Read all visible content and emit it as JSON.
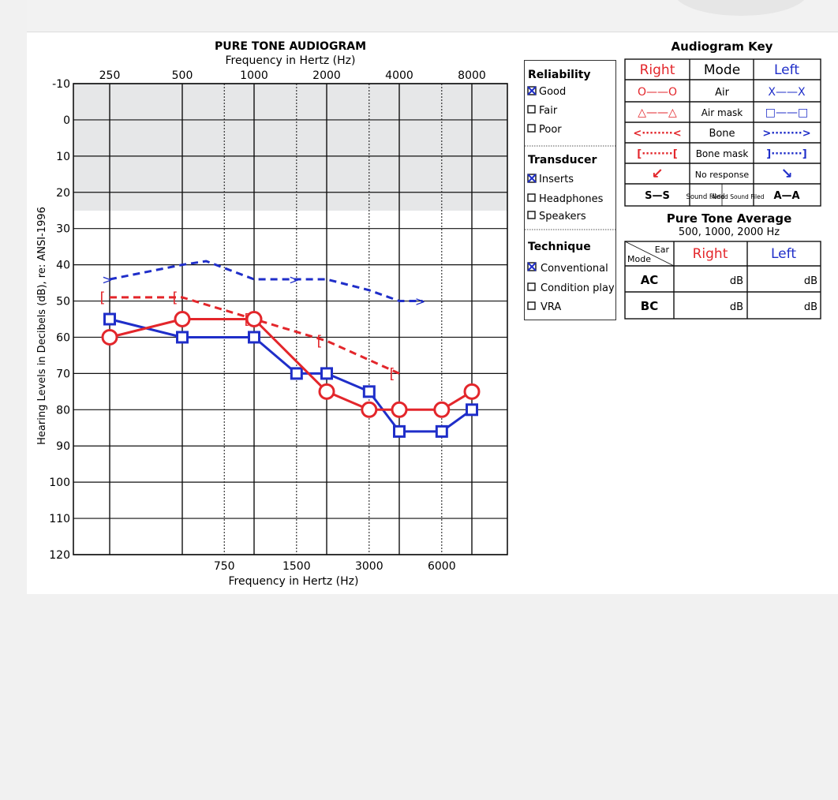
{
  "chart_data": {
    "type": "line",
    "title": "PURE TONE AUDIOGRAM",
    "xlabel_top": "Frequency in Hertz (Hz)",
    "xlabel_bottom": "Frequency in Hertz (Hz)",
    "ylabel": "Hearing Levels in Decibels (dB), re: ANSI-1996",
    "x_ticks_top": [
      "250",
      "500",
      "1000",
      "2000",
      "4000",
      "8000"
    ],
    "x_ticks_bottom": [
      "750",
      "1500",
      "3000",
      "6000"
    ],
    "y_ticks": [
      "-10",
      "0",
      "10",
      "20",
      "30",
      "40",
      "50",
      "60",
      "70",
      "80",
      "90",
      "100",
      "110",
      "120"
    ],
    "ylim": [
      -10,
      120
    ],
    "y_inverted": true,
    "normal_range": [
      -10,
      25
    ],
    "series": [
      {
        "name": "Right Air",
        "color": "#e3262b",
        "marker": "O",
        "style": "solid",
        "x": [
          250,
          500,
          1000,
          2000,
          3000,
          4000,
          6000,
          8000
        ],
        "y": [
          60,
          55,
          55,
          75,
          80,
          80,
          80,
          75
        ]
      },
      {
        "name": "Left Air mask",
        "color": "#1f2ec9",
        "marker": "□",
        "style": "solid",
        "x": [
          250,
          500,
          1000,
          1500,
          2000,
          3000,
          4000,
          6000,
          8000
        ],
        "y": [
          55,
          60,
          60,
          70,
          70,
          75,
          86,
          86,
          80
        ]
      },
      {
        "name": "Right Bone mask",
        "color": "#e3262b",
        "marker": "[",
        "style": "dashed",
        "x": [
          250,
          500,
          1000,
          2000,
          4000
        ],
        "y": [
          49,
          49,
          55,
          61,
          70
        ]
      },
      {
        "name": "Left Bone",
        "color": "#1f2ec9",
        "marker": ">",
        "style": "dashed",
        "x": [
          250,
          500,
          630,
          1000,
          1500,
          2000,
          3000,
          4000,
          5000
        ],
        "y": [
          44,
          40,
          39,
          44,
          44,
          44,
          47,
          50,
          50
        ]
      }
    ]
  },
  "legend": {
    "reliability": {
      "title": "Reliability",
      "options": [
        "Good",
        "Fair",
        "Poor"
      ],
      "checked": "Good"
    },
    "transducer": {
      "title": "Transducer",
      "options": [
        "Inserts",
        "Headphones",
        "Speakers"
      ],
      "checked": "Inserts"
    },
    "technique": {
      "title": "Technique",
      "options": [
        "Conventional",
        "Condition play",
        "VRA"
      ],
      "checked": "Conventional"
    }
  },
  "key": {
    "title": "Audiogram Key",
    "headers": {
      "right": "Right",
      "mode": "Mode",
      "left": "Left"
    },
    "rows": [
      {
        "right": "O——O",
        "mode": "Air",
        "left": "X——X"
      },
      {
        "right": "△——△",
        "mode": "Air mask",
        "left": "□——□"
      },
      {
        "right": "<········<",
        "mode": "Bone",
        "left": ">········>"
      },
      {
        "right": "[········[",
        "mode": "Bone mask",
        "left": "]········]"
      },
      {
        "right": "↙",
        "mode": "No response",
        "left": "↘"
      }
    ],
    "last_row": {
      "right": "S—S",
      "sound_filed": "Sound Filed",
      "aided": "Aided Sound Filed",
      "left": "A—A"
    }
  },
  "pta": {
    "title": "Pure Tone Average",
    "subtitle": "500, 1000, 2000 Hz",
    "corner_ear": "Ear",
    "corner_mode": "Mode",
    "col_right": "Right",
    "col_left": "Left",
    "rows": [
      {
        "label": "AC",
        "right": "dB",
        "left": "dB"
      },
      {
        "label": "BC",
        "right": "dB",
        "left": "dB"
      }
    ]
  },
  "colors": {
    "red": "#e3262b",
    "blue": "#1f2ec9",
    "normal_band": "#e6e7e8"
  }
}
